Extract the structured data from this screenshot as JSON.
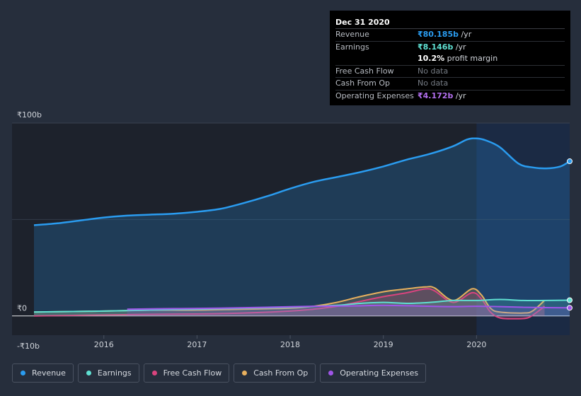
{
  "tooltip": {
    "date": "Dec 31 2020",
    "rows": [
      {
        "label": "Revenue",
        "value": "₹80.185b",
        "suffix": " /yr",
        "color": "#2a9cf0"
      },
      {
        "label": "Earnings",
        "value": "₹8.146b",
        "suffix": " /yr",
        "color": "#5fe0d2"
      },
      {
        "label": "",
        "value": "10.2%",
        "suffix": " profit margin",
        "color": "#ffffff"
      },
      {
        "label": "Free Cash Flow",
        "value": "No data",
        "suffix": "",
        "color": "#767c85"
      },
      {
        "label": "Cash From Op",
        "value": "No data",
        "suffix": "",
        "color": "#767c85"
      },
      {
        "label": "Operating Expenses",
        "value": "₹4.172b",
        "suffix": " /yr",
        "color": "#b370f0"
      }
    ]
  },
  "legend": [
    {
      "label": "Revenue",
      "color": "#2a9cf0"
    },
    {
      "label": "Earnings",
      "color": "#5fe0d2"
    },
    {
      "label": "Free Cash Flow",
      "color": "#d9447e"
    },
    {
      "label": "Cash From Op",
      "color": "#e8b05e"
    },
    {
      "label": "Operating Expenses",
      "color": "#9f55e8"
    }
  ],
  "chart_data": {
    "type": "area",
    "y_tick_labels": [
      "₹100b",
      "₹0",
      "-₹10b"
    ],
    "x_tick_labels": [
      "2016",
      "2017",
      "2018",
      "2019",
      "2020"
    ],
    "ylim": [
      -10,
      100
    ],
    "xlim": [
      2015.25,
      2021.0
    ],
    "highlight_from": 2020.0,
    "series": [
      {
        "name": "Revenue",
        "color": "#2a9cf0",
        "fill": true,
        "x": [
          2015.25,
          2015.5,
          2015.75,
          2016.0,
          2016.25,
          2016.5,
          2016.75,
          2017.0,
          2017.25,
          2017.5,
          2017.75,
          2018.0,
          2018.25,
          2018.5,
          2018.75,
          2019.0,
          2019.25,
          2019.5,
          2019.75,
          2019.9,
          2020.0,
          2020.1,
          2020.25,
          2020.45,
          2020.6,
          2020.75,
          2020.9,
          2021.0
        ],
        "y": [
          47,
          48,
          49.5,
          51,
          52,
          52.5,
          53,
          54,
          55.5,
          58.5,
          62,
          66,
          69.5,
          72,
          74.5,
          77.5,
          81,
          84,
          88,
          91.5,
          92,
          91,
          87.5,
          79,
          77,
          76.5,
          77.5,
          80.185
        ]
      },
      {
        "name": "Earnings",
        "color": "#5fe0d2",
        "fill": true,
        "x": [
          2015.25,
          2016.0,
          2016.5,
          2017.0,
          2017.5,
          2018.0,
          2018.5,
          2018.75,
          2019.0,
          2019.25,
          2019.5,
          2019.75,
          2020.0,
          2020.25,
          2020.5,
          2020.75,
          2021.0
        ],
        "y": [
          2,
          2.5,
          3,
          3.5,
          4,
          4.5,
          5.5,
          6.5,
          7,
          6.5,
          7,
          8,
          8,
          8.5,
          8,
          8,
          8.146
        ]
      },
      {
        "name": "Free Cash Flow",
        "color": "#d9447e",
        "fill": true,
        "x": [
          2015.25,
          2016.0,
          2016.5,
          2017.0,
          2017.5,
          2018.0,
          2018.25,
          2018.5,
          2018.75,
          2019.0,
          2019.25,
          2019.45,
          2019.55,
          2019.75,
          2019.95,
          2020.05,
          2020.15,
          2020.25,
          2020.4,
          2020.55,
          2020.65,
          2020.73
        ],
        "y": [
          0,
          0.5,
          0.8,
          1,
          1.5,
          2.5,
          3.5,
          5,
          7.5,
          10,
          12,
          14,
          13,
          7,
          12,
          9,
          2,
          -1,
          -1.5,
          -1,
          2,
          5
        ]
      },
      {
        "name": "Cash From Op",
        "color": "#e8b05e",
        "fill": true,
        "x": [
          2015.25,
          2016.0,
          2016.5,
          2017.0,
          2017.5,
          2018.0,
          2018.25,
          2018.5,
          2018.75,
          2019.0,
          2019.25,
          2019.45,
          2019.55,
          2019.75,
          2019.95,
          2020.05,
          2020.15,
          2020.25,
          2020.5,
          2020.6,
          2020.73
        ],
        "y": [
          2,
          2.5,
          3,
          3,
          3.5,
          4,
          5,
          7,
          10,
          12.5,
          14,
          15,
          14.5,
          8,
          14,
          11,
          4,
          2,
          1.5,
          2.5,
          8
        ]
      },
      {
        "name": "Operating Expenses",
        "color": "#9f55e8",
        "fill": true,
        "x": [
          2016.25,
          2016.75,
          2017.25,
          2017.75,
          2018.25,
          2018.75,
          2019.0,
          2019.5,
          2019.75,
          2020.0,
          2020.25,
          2020.5,
          2020.75,
          2021.0
        ],
        "y": [
          3.5,
          3.8,
          4,
          4.5,
          5,
          5.2,
          5.5,
          5,
          4.8,
          5,
          4.8,
          4.5,
          4.3,
          4.172
        ]
      }
    ]
  }
}
